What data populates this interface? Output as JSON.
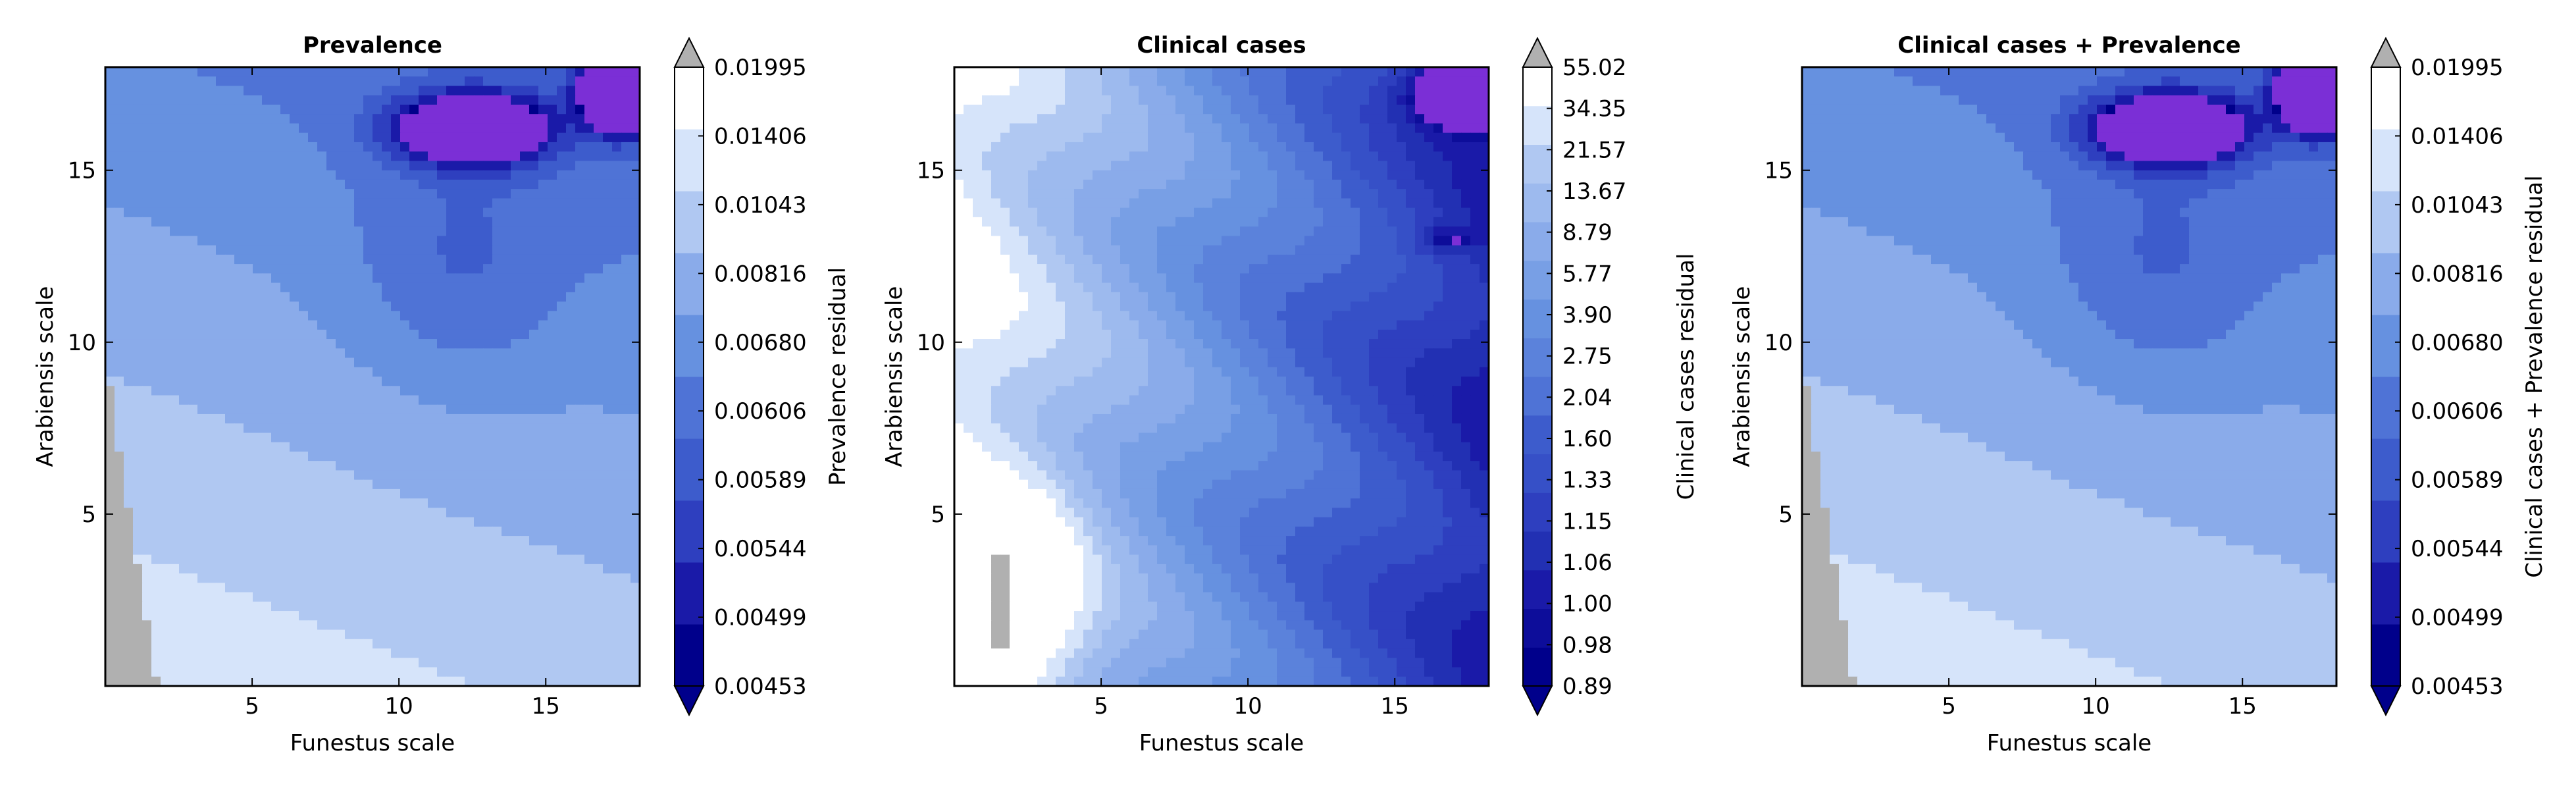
{
  "chart_data": [
    {
      "type": "heatmap",
      "title": "Prevalence",
      "xlabel": "Funestus scale",
      "ylabel": "Arabiensis scale",
      "xlim": [
        0,
        18.2
      ],
      "ylim": [
        0,
        18
      ],
      "xticks": [
        5,
        10,
        15
      ],
      "yticks": [
        5,
        10,
        15
      ],
      "colorbar": {
        "label": "Prevalence residual",
        "levels": [
          "0.00453",
          "0.00499",
          "0.00544",
          "0.00589",
          "0.00606",
          "0.00680",
          "0.00816",
          "0.01043",
          "0.01406",
          "0.01995"
        ],
        "extend": "both",
        "colors": [
          "#00008b",
          "#1a1aa8",
          "#2e3fbf",
          "#3d5ccc",
          "#4f73d6",
          "#6691e0",
          "#8aabea",
          "#b0c8f2",
          "#d6e4fa",
          "#ffffff"
        ]
      },
      "field_profile": "prevalence",
      "high_region_color": "#7b2fd6",
      "masked_color": "#b0b0b0"
    },
    {
      "type": "heatmap",
      "title": "Clinical cases",
      "xlabel": "Funestus scale",
      "ylabel": "Arabiensis scale",
      "xlim": [
        0,
        18.2
      ],
      "ylim": [
        0,
        18
      ],
      "xticks": [
        5,
        10,
        15
      ],
      "yticks": [
        5,
        10,
        15
      ],
      "colorbar": {
        "label": "Clinical cases residual",
        "levels": [
          "0.89",
          "0.98",
          "1.00",
          "1.06",
          "1.15",
          "1.33",
          "1.60",
          "2.04",
          "2.75",
          "3.90",
          "5.77",
          "8.79",
          "13.67",
          "21.57",
          "34.35",
          "55.02"
        ],
        "extend": "both",
        "colors": [
          "#00008b",
          "#0d0d9a",
          "#1a1aa8",
          "#2230b3",
          "#2e3fbf",
          "#3650c7",
          "#3d5ccc",
          "#4f73d6",
          "#5b82db",
          "#6691e0",
          "#789fe5",
          "#8aabea",
          "#9dbaee",
          "#b0c8f2",
          "#d6e4fa",
          "#ffffff"
        ]
      },
      "field_profile": "clinical",
      "high_region_color": "#7b2fd6",
      "masked_color": "#b0b0b0"
    },
    {
      "type": "heatmap",
      "title": "Clinical cases + Prevalence",
      "xlabel": "Funestus scale",
      "ylabel": "Arabiensis scale",
      "xlim": [
        0,
        18.2
      ],
      "ylim": [
        0,
        18
      ],
      "xticks": [
        5,
        10,
        15
      ],
      "yticks": [
        5,
        10,
        15
      ],
      "colorbar": {
        "label": "Clinical cases + Prevalence residual",
        "levels": [
          "0.00453",
          "0.00499",
          "0.00544",
          "0.00589",
          "0.00606",
          "0.00680",
          "0.00816",
          "0.01043",
          "0.01406",
          "0.01995"
        ],
        "extend": "both",
        "colors": [
          "#00008b",
          "#1a1aa8",
          "#2e3fbf",
          "#3d5ccc",
          "#4f73d6",
          "#6691e0",
          "#8aabea",
          "#b0c8f2",
          "#d6e4fa",
          "#ffffff"
        ]
      },
      "field_profile": "prevalence",
      "high_region_color": "#7b2fd6",
      "masked_color": "#b0b0b0"
    }
  ]
}
